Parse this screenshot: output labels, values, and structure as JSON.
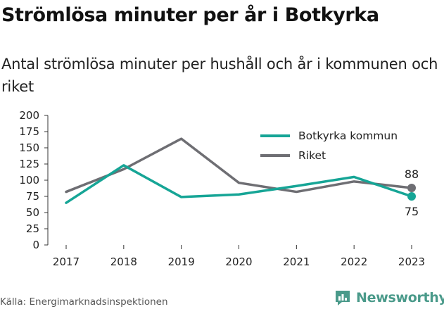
{
  "title": "Strömlösa minuter per år i Botkyrka",
  "subtitle": "Antal strömlösa minuter per hushåll och år i kommunen och riket",
  "source": "Källa: Energimarknadsinspektionen",
  "brand": {
    "name": "Newsworthy",
    "icon": "newsworthy-logo-icon",
    "color": "#4a9a8a"
  },
  "chart_data": {
    "type": "line",
    "x": [
      "2017",
      "2018",
      "2019",
      "2020",
      "2021",
      "2022",
      "2023"
    ],
    "series": [
      {
        "name": "Botkyrka kommun",
        "color": "#16a596",
        "values": [
          65,
          123,
          74,
          78,
          91,
          105,
          75
        ]
      },
      {
        "name": "Riket",
        "color": "#6e6e73",
        "values": [
          82,
          117,
          164,
          96,
          82,
          98,
          88
        ]
      }
    ],
    "yticks": [
      "0",
      "25",
      "50",
      "75",
      "100",
      "125",
      "150",
      "175",
      "200"
    ],
    "ylim": [
      0,
      200
    ],
    "end_labels": [
      "75",
      "88"
    ],
    "legend_position": "top-right",
    "grid": false,
    "xlabel": "",
    "ylabel": ""
  }
}
